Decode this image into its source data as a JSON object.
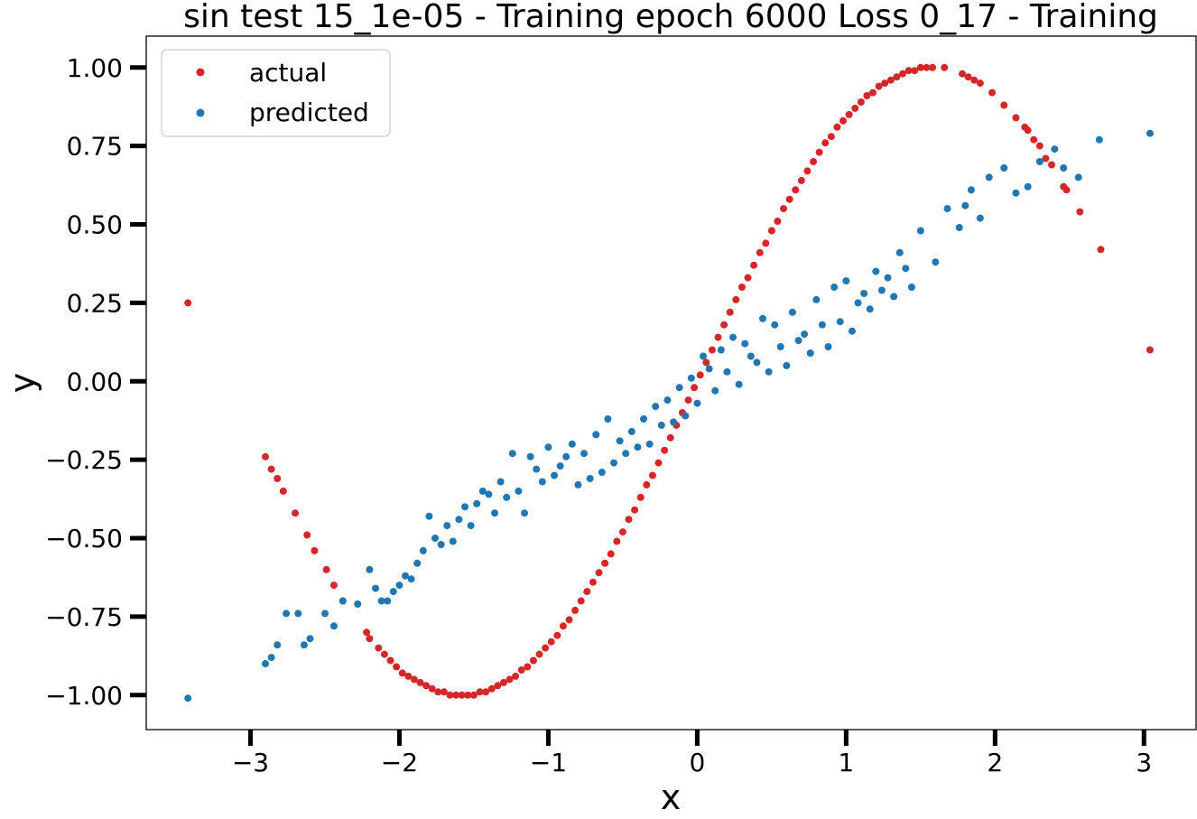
{
  "chart_data": {
    "type": "scatter",
    "title": "sin test 15_1e-05 - Training epoch 6000 Loss 0_17 - Training",
    "xlabel": "x",
    "ylabel": "y",
    "xlim": [
      -3.7,
      3.35
    ],
    "ylim": [
      -1.11,
      1.1
    ],
    "xticks": [
      -3,
      -2,
      -1,
      0,
      1,
      2,
      3
    ],
    "xtick_labels": [
      "−3",
      "−2",
      "−1",
      "0",
      "1",
      "2",
      "3"
    ],
    "yticks": [
      -1.0,
      -0.75,
      -0.5,
      -0.25,
      0.0,
      0.25,
      0.5,
      0.75,
      1.0
    ],
    "ytick_labels": [
      "−1.00",
      "−0.75",
      "−0.50",
      "−0.25",
      "0.00",
      "0.25",
      "0.50",
      "0.75",
      "1.00"
    ],
    "grid": false,
    "legend_position": "top-left",
    "series": [
      {
        "name": "actual",
        "color": "#d62728",
        "x_values": [
          -3.42,
          -2.9,
          -2.86,
          -2.82,
          -2.78,
          -2.7,
          -2.62,
          -2.57,
          -2.49,
          -2.44,
          -2.38,
          -2.22,
          -2.2,
          -2.14,
          -2.1,
          -2.06,
          -2.02,
          -1.98,
          -1.94,
          -1.9,
          -1.86,
          -1.82,
          -1.78,
          -1.74,
          -1.7,
          -1.66,
          -1.62,
          -1.58,
          -1.54,
          -1.5,
          -1.46,
          -1.42,
          -1.38,
          -1.34,
          -1.3,
          -1.26,
          -1.22,
          -1.18,
          -1.14,
          -1.1,
          -1.06,
          -1.02,
          -0.98,
          -0.94,
          -0.9,
          -0.86,
          -0.82,
          -0.78,
          -0.74,
          -0.7,
          -0.66,
          -0.62,
          -0.58,
          -0.54,
          -0.5,
          -0.46,
          -0.42,
          -0.38,
          -0.34,
          -0.3,
          -0.26,
          -0.22,
          -0.18,
          -0.14,
          -0.1,
          -0.06,
          -0.02,
          0.02,
          0.06,
          0.1,
          0.14,
          0.18,
          0.22,
          0.26,
          0.3,
          0.34,
          0.38,
          0.42,
          0.46,
          0.5,
          0.54,
          0.58,
          0.62,
          0.66,
          0.7,
          0.74,
          0.78,
          0.82,
          0.86,
          0.9,
          0.94,
          0.98,
          1.02,
          1.06,
          1.1,
          1.14,
          1.18,
          1.22,
          1.26,
          1.3,
          1.34,
          1.38,
          1.42,
          1.46,
          1.5,
          1.54,
          1.58,
          1.66,
          1.78,
          1.82,
          1.86,
          1.9,
          1.98,
          2.06,
          2.14,
          2.2,
          2.22,
          2.26,
          2.3,
          2.34,
          2.38,
          2.46,
          2.48,
          2.57,
          2.71,
          3.04
        ],
        "y_values": [
          0.25,
          -0.24,
          -0.28,
          -0.31,
          -0.35,
          -0.42,
          -0.49,
          -0.54,
          -0.6,
          -0.65,
          -0.7,
          -0.8,
          -0.82,
          -0.85,
          -0.87,
          -0.89,
          -0.91,
          -0.93,
          -0.94,
          -0.95,
          -0.96,
          -0.97,
          -0.98,
          -0.99,
          -0.99,
          -1.0,
          -1.0,
          -1.0,
          -1.0,
          -1.0,
          -0.99,
          -0.99,
          -0.98,
          -0.97,
          -0.96,
          -0.95,
          -0.94,
          -0.92,
          -0.91,
          -0.89,
          -0.87,
          -0.85,
          -0.83,
          -0.81,
          -0.78,
          -0.76,
          -0.73,
          -0.7,
          -0.67,
          -0.64,
          -0.61,
          -0.58,
          -0.55,
          -0.51,
          -0.48,
          -0.44,
          -0.41,
          -0.37,
          -0.33,
          -0.3,
          -0.26,
          -0.22,
          -0.18,
          -0.14,
          -0.1,
          -0.06,
          -0.02,
          0.02,
          0.06,
          0.1,
          0.14,
          0.18,
          0.22,
          0.26,
          0.3,
          0.33,
          0.37,
          0.41,
          0.44,
          0.48,
          0.51,
          0.55,
          0.58,
          0.61,
          0.64,
          0.67,
          0.7,
          0.73,
          0.76,
          0.78,
          0.81,
          0.83,
          0.85,
          0.87,
          0.89,
          0.91,
          0.92,
          0.94,
          0.95,
          0.96,
          0.97,
          0.98,
          0.99,
          0.99,
          1.0,
          1.0,
          1.0,
          1.0,
          0.98,
          0.97,
          0.96,
          0.95,
          0.92,
          0.88,
          0.84,
          0.81,
          0.8,
          0.77,
          0.75,
          0.71,
          0.69,
          0.62,
          0.61,
          0.54,
          0.42,
          0.1
        ]
      },
      {
        "name": "predicted",
        "color": "#1f77b4",
        "x_values": [
          -3.42,
          -2.9,
          -2.86,
          -2.82,
          -2.76,
          -2.68,
          -2.64,
          -2.6,
          -2.5,
          -2.44,
          -2.38,
          -2.28,
          -2.2,
          -2.16,
          -2.12,
          -2.08,
          -2.04,
          -2.0,
          -1.96,
          -1.92,
          -1.88,
          -1.84,
          -1.8,
          -1.76,
          -1.72,
          -1.68,
          -1.64,
          -1.6,
          -1.56,
          -1.52,
          -1.48,
          -1.44,
          -1.4,
          -1.36,
          -1.32,
          -1.28,
          -1.24,
          -1.2,
          -1.16,
          -1.12,
          -1.08,
          -1.04,
          -1.0,
          -0.96,
          -0.92,
          -0.88,
          -0.84,
          -0.8,
          -0.76,
          -0.72,
          -0.68,
          -0.64,
          -0.6,
          -0.56,
          -0.52,
          -0.48,
          -0.44,
          -0.4,
          -0.36,
          -0.32,
          -0.28,
          -0.24,
          -0.2,
          -0.16,
          -0.12,
          -0.08,
          -0.04,
          0.0,
          0.04,
          0.08,
          0.12,
          0.16,
          0.2,
          0.24,
          0.28,
          0.32,
          0.36,
          0.4,
          0.44,
          0.48,
          0.52,
          0.56,
          0.6,
          0.64,
          0.68,
          0.72,
          0.76,
          0.8,
          0.84,
          0.88,
          0.92,
          0.96,
          1.0,
          1.04,
          1.08,
          1.12,
          1.16,
          1.2,
          1.24,
          1.28,
          1.32,
          1.36,
          1.4,
          1.44,
          1.5,
          1.6,
          1.68,
          1.76,
          1.8,
          1.84,
          1.9,
          1.96,
          2.06,
          2.14,
          2.22,
          2.3,
          2.4,
          2.46,
          2.56,
          2.7,
          3.04
        ],
        "y_values": [
          -1.01,
          -0.9,
          -0.88,
          -0.84,
          -0.74,
          -0.74,
          -0.84,
          -0.82,
          -0.74,
          -0.78,
          -0.7,
          -0.71,
          -0.6,
          -0.66,
          -0.7,
          -0.7,
          -0.67,
          -0.65,
          -0.62,
          -0.63,
          -0.58,
          -0.54,
          -0.43,
          -0.5,
          -0.52,
          -0.46,
          -0.51,
          -0.44,
          -0.4,
          -0.46,
          -0.39,
          -0.35,
          -0.36,
          -0.42,
          -0.32,
          -0.37,
          -0.23,
          -0.35,
          -0.42,
          -0.24,
          -0.28,
          -0.32,
          -0.21,
          -0.3,
          -0.27,
          -0.24,
          -0.2,
          -0.33,
          -0.23,
          -0.31,
          -0.17,
          -0.29,
          -0.12,
          -0.26,
          -0.19,
          -0.23,
          -0.16,
          -0.21,
          -0.12,
          -0.2,
          -0.08,
          -0.14,
          -0.06,
          -0.13,
          -0.02,
          -0.11,
          0.01,
          -0.07,
          0.08,
          0.04,
          -0.03,
          0.1,
          0.03,
          0.14,
          -0.01,
          0.12,
          0.08,
          0.06,
          0.2,
          0.03,
          0.18,
          0.11,
          0.05,
          0.22,
          0.13,
          0.15,
          0.09,
          0.26,
          0.18,
          0.11,
          0.3,
          0.19,
          0.32,
          0.16,
          0.25,
          0.28,
          0.23,
          0.35,
          0.29,
          0.33,
          0.27,
          0.41,
          0.36,
          0.3,
          0.48,
          0.38,
          0.55,
          0.49,
          0.56,
          0.61,
          0.52,
          0.65,
          0.68,
          0.6,
          0.62,
          0.7,
          0.74,
          0.68,
          0.65,
          0.77,
          0.79
        ]
      }
    ]
  }
}
